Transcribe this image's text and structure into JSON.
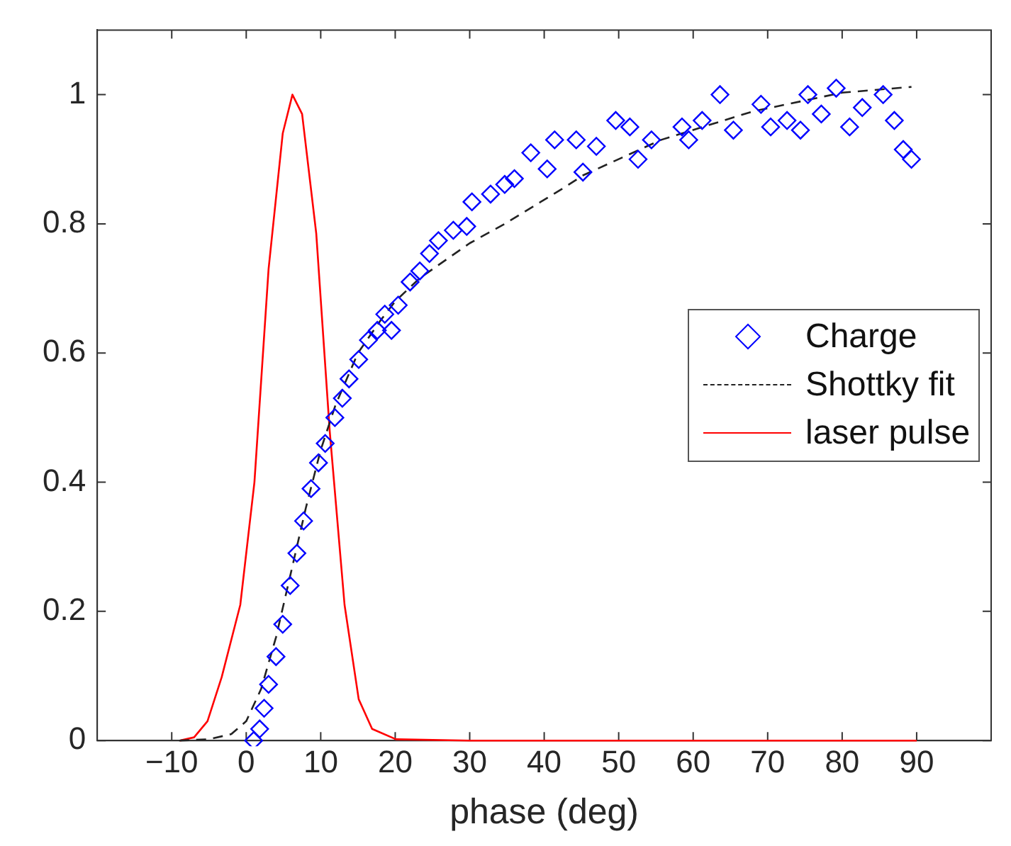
{
  "chart_data": {
    "type": "scatter",
    "xlabel": "phase (deg)",
    "xlim": [
      -20,
      100
    ],
    "xticks": [
      -10,
      0,
      10,
      20,
      30,
      40,
      50,
      60,
      70,
      80,
      90
    ],
    "ylim": [
      0,
      1.1
    ],
    "yticks": [
      0,
      0.2,
      0.4,
      0.6,
      0.8,
      1
    ],
    "grid": false,
    "legend": "right",
    "series": [
      {
        "name": "Charge",
        "type": "scatter",
        "marker": "diamond",
        "color": "#0000ff",
        "x": [
          1.0,
          1.8,
          2.4,
          3.0,
          4.0,
          4.9,
          5.9,
          6.8,
          7.7,
          8.7,
          9.7,
          10.6,
          11.9,
          12.9,
          13.8,
          15.1,
          16.4,
          17.6,
          18.6,
          19.5,
          20.4,
          22,
          23.3,
          24.6,
          25.8,
          27.8,
          29.6,
          30.3,
          32.8,
          34.7,
          36,
          38.2,
          40.4,
          41.4,
          44.3,
          45.2,
          47,
          49.6,
          51.5,
          52.6,
          54.4,
          58.5,
          59.4,
          61.2,
          63.6,
          65.4,
          69.1,
          70.4,
          72.6,
          74.4,
          75.4,
          77.2,
          79.2,
          81,
          82.7,
          85.5,
          87,
          88.2,
          89.3
        ],
        "values": [
          0,
          0.018,
          0.05,
          0.087,
          0.13,
          0.18,
          0.24,
          0.29,
          0.34,
          0.39,
          0.43,
          0.46,
          0.5,
          0.53,
          0.56,
          0.59,
          0.62,
          0.635,
          0.66,
          0.635,
          0.674,
          0.71,
          0.727,
          0.754,
          0.774,
          0.79,
          0.796,
          0.834,
          0.846,
          0.861,
          0.87,
          0.91,
          0.885,
          0.93,
          0.93,
          0.88,
          0.92,
          0.96,
          0.95,
          0.9,
          0.93,
          0.95,
          0.93,
          0.96,
          1.0,
          0.945,
          0.985,
          0.95,
          0.96,
          0.945,
          1.0,
          0.97,
          1.01,
          0.95,
          0.98,
          1.0,
          0.96,
          0.915,
          0.9
        ]
      },
      {
        "name": "Shottky fit",
        "type": "line",
        "marker": "none",
        "line_style": "dashed",
        "color": "#222222",
        "x": [
          -9,
          -5,
          -2,
          0,
          2,
          4,
          6,
          8,
          10,
          12,
          15,
          18,
          20,
          23.3,
          30,
          34.7,
          42.8,
          45.2,
          55.7,
          68,
          80,
          89.3
        ],
        "values": [
          0,
          0.002,
          0.01,
          0.03,
          0.08,
          0.16,
          0.26,
          0.36,
          0.45,
          0.52,
          0.6,
          0.65,
          0.68,
          0.716,
          0.77,
          0.8,
          0.857,
          0.875,
          0.93,
          0.974,
          1.003,
          1.012
        ]
      },
      {
        "name": "laser pulse",
        "type": "line",
        "marker": "none",
        "line_style": "solid",
        "color": "#ff0000",
        "x": [
          -8.9,
          -7,
          -5.2,
          -3.3,
          -0.8,
          1.1,
          3.0,
          4.9,
          6.2,
          7.5,
          9.4,
          11.2,
          13.2,
          15.1,
          16.9,
          20.1,
          30,
          50,
          70,
          90
        ],
        "values": [
          0,
          0.005,
          0.03,
          0.098,
          0.21,
          0.4,
          0.73,
          0.94,
          1.0,
          0.97,
          0.785,
          0.48,
          0.21,
          0.064,
          0.018,
          0.002,
          0,
          0,
          0,
          0
        ]
      }
    ]
  }
}
